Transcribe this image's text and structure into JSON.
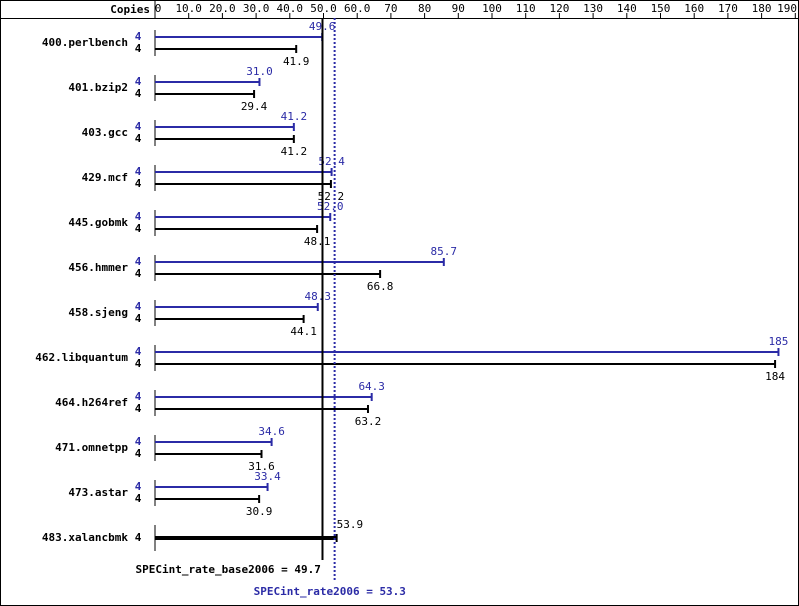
{
  "chart_data": {
    "type": "bar",
    "orientation": "horizontal",
    "x_axis_label": "Copies",
    "categories": [
      "400.perlbench",
      "401.bzip2",
      "403.gcc",
      "429.mcf",
      "445.gobmk",
      "456.hmmer",
      "458.sjeng",
      "462.libquantum",
      "464.h264ref",
      "471.omnetpp",
      "473.astar",
      "483.xalancbmk"
    ],
    "series": [
      {
        "color": "#000000",
        "copies": [
          4,
          4,
          4,
          4,
          4,
          4,
          4,
          4,
          4,
          4,
          4,
          4
        ],
        "values": [
          41.9,
          29.4,
          41.2,
          52.2,
          48.1,
          66.8,
          44.1,
          184,
          63.2,
          31.6,
          30.9,
          53.9
        ]
      },
      {
        "color": "#2b2ba6",
        "copies": [
          4,
          4,
          4,
          4,
          4,
          4,
          4,
          4,
          4,
          4,
          4,
          null
        ],
        "values": [
          49.6,
          31.0,
          41.2,
          52.4,
          52.0,
          85.7,
          48.3,
          185,
          64.3,
          34.6,
          33.4,
          null
        ],
        "value_labels": [
          "49.6",
          "31.0",
          "41.2",
          "52.4",
          "52.0",
          "85.7",
          "48.3",
          "185",
          "64.3",
          "34.6",
          "33.4",
          null
        ]
      }
    ],
    "summary": [
      {
        "value": 49.7,
        "label": "SPECint_rate_base2006 = 49.7",
        "color": "#000000",
        "style": "solid"
      },
      {
        "value": 53.3,
        "label": "SPECint_rate2006 = 53.3",
        "color": "#2b2ba6",
        "style": "dotted"
      }
    ],
    "xlim": [
      0,
      190
    ],
    "xticks": [
      0,
      {
        "value": 10,
        "label": "10.0"
      },
      {
        "value": 20,
        "label": "20.0"
      },
      {
        "value": 30,
        "label": "30.0"
      },
      {
        "value": 40,
        "label": "40.0"
      },
      {
        "value": 50,
        "label": "50.0"
      },
      {
        "value": 60,
        "label": "60.0"
      },
      70,
      80,
      90,
      100,
      110,
      120,
      130,
      140,
      150,
      160,
      170,
      180,
      190
    ]
  }
}
